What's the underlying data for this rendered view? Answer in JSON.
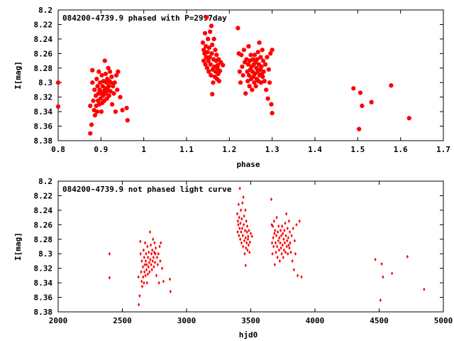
{
  "chart_data": [
    {
      "type": "scatter",
      "title": "084200-4739.9 phased with P=2997day",
      "xlabel": "phase",
      "ylabel": "I[mag]",
      "xlim": [
        0.8,
        1.7
      ],
      "ylim": [
        8.2,
        8.38
      ],
      "y_inverted": true,
      "grid": false,
      "marker_color": "#ff0000",
      "xticks": [
        "0.8",
        "0.9",
        "1",
        "1.1",
        "1.2",
        "1.3",
        "1.4",
        "1.5",
        "1.6",
        "1.7"
      ],
      "yticks": [
        "8.2",
        "8.22",
        "8.24",
        "8.26",
        "8.28",
        "8.3",
        "8.32",
        "8.34",
        "8.36",
        "8.38"
      ],
      "points": [
        [
          0.8,
          8.3
        ],
        [
          0.8,
          8.333
        ],
        [
          0.875,
          8.332
        ],
        [
          0.875,
          8.37
        ],
        [
          0.878,
          8.358
        ],
        [
          0.88,
          8.283
        ],
        [
          0.88,
          8.3
        ],
        [
          0.882,
          8.325
        ],
        [
          0.884,
          8.338
        ],
        [
          0.885,
          8.31
        ],
        [
          0.886,
          8.345
        ],
        [
          0.888,
          8.318
        ],
        [
          0.889,
          8.332
        ],
        [
          0.89,
          8.295
        ],
        [
          0.891,
          8.34
        ],
        [
          0.892,
          8.305
        ],
        [
          0.893,
          8.325
        ],
        [
          0.894,
          8.315
        ],
        [
          0.895,
          8.285
        ],
        [
          0.896,
          8.33
        ],
        [
          0.897,
          8.31
        ],
        [
          0.898,
          8.3
        ],
        [
          0.899,
          8.322
        ],
        [
          0.9,
          8.315
        ],
        [
          0.901,
          8.34
        ],
        [
          0.902,
          8.29
        ],
        [
          0.903,
          8.328
        ],
        [
          0.904,
          8.305
        ],
        [
          0.905,
          8.318
        ],
        [
          0.906,
          8.298
        ],
        [
          0.907,
          8.312
        ],
        [
          0.908,
          8.325
        ],
        [
          0.909,
          8.27
        ],
        [
          0.91,
          8.308
        ],
        [
          0.911,
          8.288
        ],
        [
          0.912,
          8.315
        ],
        [
          0.913,
          8.3
        ],
        [
          0.914,
          8.322
        ],
        [
          0.915,
          8.295
        ],
        [
          0.916,
          8.31
        ],
        [
          0.917,
          8.28
        ],
        [
          0.918,
          8.305
        ],
        [
          0.919,
          8.318
        ],
        [
          0.92,
          8.298
        ],
        [
          0.921,
          8.285
        ],
        [
          0.922,
          8.312
        ],
        [
          0.923,
          8.3
        ],
        [
          0.925,
          8.292
        ],
        [
          0.926,
          8.33
        ],
        [
          0.928,
          8.305
        ],
        [
          0.93,
          8.315
        ],
        [
          0.932,
          8.3
        ],
        [
          0.934,
          8.34
        ],
        [
          0.936,
          8.29
        ],
        [
          0.938,
          8.31
        ],
        [
          0.94,
          8.285
        ],
        [
          0.945,
          8.32
        ],
        [
          0.95,
          8.338
        ],
        [
          0.96,
          8.335
        ],
        [
          0.962,
          8.352
        ],
        [
          1.138,
          8.245
        ],
        [
          1.14,
          8.27
        ],
        [
          1.14,
          8.255
        ],
        [
          1.142,
          8.26
        ],
        [
          1.143,
          8.232
        ],
        [
          1.144,
          8.275
        ],
        [
          1.145,
          8.25
        ],
        [
          1.146,
          8.265
        ],
        [
          1.147,
          8.21
        ],
        [
          1.148,
          8.28
        ],
        [
          1.149,
          8.258
        ],
        [
          1.15,
          8.24
        ],
        [
          1.151,
          8.27
        ],
        [
          1.152,
          8.285
        ],
        [
          1.153,
          8.252
        ],
        [
          1.154,
          8.265
        ],
        [
          1.155,
          8.23
        ],
        [
          1.156,
          8.275
        ],
        [
          1.157,
          8.29
        ],
        [
          1.158,
          8.222
        ],
        [
          1.159,
          8.26
        ],
        [
          1.16,
          8.248
        ],
        [
          1.161,
          8.282
        ],
        [
          1.162,
          8.3
        ],
        [
          1.163,
          8.268
        ],
        [
          1.164,
          8.24
        ],
        [
          1.165,
          8.278
        ],
        [
          1.166,
          8.292
        ],
        [
          1.167,
          8.255
        ],
        [
          1.168,
          8.285
        ],
        [
          1.169,
          8.27
        ],
        [
          1.17,
          8.262
        ],
        [
          1.171,
          8.295
        ],
        [
          1.172,
          8.28
        ],
        [
          1.173,
          8.276
        ],
        [
          1.174,
          8.288
        ],
        [
          1.175,
          8.268
        ],
        [
          1.176,
          8.298
        ],
        [
          1.178,
          8.284
        ],
        [
          1.18,
          8.272
        ],
        [
          1.16,
          8.316
        ],
        [
          1.185,
          8.276
        ],
        [
          1.22,
          8.225
        ],
        [
          1.222,
          8.26
        ],
        [
          1.224,
          8.285
        ],
        [
          1.226,
          8.3
        ],
        [
          1.228,
          8.262
        ],
        [
          1.23,
          8.278
        ],
        [
          1.232,
          8.29
        ],
        [
          1.234,
          8.255
        ],
        [
          1.236,
          8.272
        ],
        [
          1.238,
          8.315
        ],
        [
          1.24,
          8.268
        ],
        [
          1.242,
          8.285
        ],
        [
          1.243,
          8.298
        ],
        [
          1.244,
          8.275
        ],
        [
          1.245,
          8.25
        ],
        [
          1.246,
          8.29
        ],
        [
          1.247,
          8.305
        ],
        [
          1.248,
          8.27
        ],
        [
          1.249,
          8.282
        ],
        [
          1.25,
          8.262
        ],
        [
          1.251,
          8.295
        ],
        [
          1.252,
          8.278
        ],
        [
          1.253,
          8.31
        ],
        [
          1.254,
          8.285
        ],
        [
          1.255,
          8.268
        ],
        [
          1.256,
          8.292
        ],
        [
          1.257,
          8.275
        ],
        [
          1.258,
          8.3
        ],
        [
          1.259,
          8.262
        ],
        [
          1.26,
          8.288
        ],
        [
          1.261,
          8.272
        ],
        [
          1.262,
          8.305
        ],
        [
          1.263,
          8.28
        ],
        [
          1.264,
          8.295
        ],
        [
          1.265,
          8.268
        ],
        [
          1.266,
          8.285
        ],
        [
          1.267,
          8.258
        ],
        [
          1.268,
          8.298
        ],
        [
          1.269,
          8.275
        ],
        [
          1.27,
          8.245
        ],
        [
          1.271,
          8.29
        ],
        [
          1.272,
          8.282
        ],
        [
          1.273,
          8.265
        ],
        [
          1.274,
          8.3
        ],
        [
          1.275,
          8.278
        ],
        [
          1.276,
          8.288
        ],
        [
          1.277,
          8.255
        ],
        [
          1.278,
          8.292
        ],
        [
          1.279,
          8.27
        ],
        [
          1.28,
          8.285
        ],
        [
          1.282,
          8.298
        ],
        [
          1.284,
          8.275
        ],
        [
          1.286,
          8.31
        ],
        [
          1.288,
          8.265
        ],
        [
          1.29,
          8.322
        ],
        [
          1.292,
          8.282
        ],
        [
          1.294,
          8.3
        ],
        [
          1.296,
          8.26
        ],
        [
          1.298,
          8.33
        ],
        [
          1.3,
          8.255
        ],
        [
          1.3,
          8.342
        ],
        [
          1.49,
          8.308
        ],
        [
          1.503,
          8.364
        ],
        [
          1.506,
          8.314
        ],
        [
          1.51,
          8.332
        ],
        [
          1.532,
          8.327
        ],
        [
          1.578,
          8.304
        ],
        [
          1.62,
          8.349
        ]
      ]
    },
    {
      "type": "scatter",
      "title": "084200-4739.9 not phased light curve",
      "xlabel": "hjd0",
      "ylabel": "I[mag]",
      "xlim": [
        2000,
        5000
      ],
      "ylim": [
        8.2,
        8.38
      ],
      "y_inverted": true,
      "grid": false,
      "marker_color": "#ff0000",
      "xticks": [
        "2000",
        "2500",
        "3000",
        "3500",
        "4000",
        "4500",
        "5000"
      ],
      "yticks": [
        "8.2",
        "8.22",
        "8.24",
        "8.26",
        "8.28",
        "8.3",
        "8.32",
        "8.34",
        "8.36",
        "8.38"
      ],
      "points": [
        [
          2400,
          8.3
        ],
        [
          2400,
          8.333
        ],
        [
          2625,
          8.332
        ],
        [
          2628,
          8.37
        ],
        [
          2635,
          8.358
        ],
        [
          2640,
          8.283
        ],
        [
          2642,
          8.3
        ],
        [
          2646,
          8.325
        ],
        [
          2650,
          8.338
        ],
        [
          2652,
          8.31
        ],
        [
          2655,
          8.345
        ],
        [
          2660,
          8.318
        ],
        [
          2662,
          8.332
        ],
        [
          2665,
          8.295
        ],
        [
          2668,
          8.34
        ],
        [
          2670,
          8.305
        ],
        [
          2672,
          8.325
        ],
        [
          2675,
          8.315
        ],
        [
          2677,
          8.285
        ],
        [
          2680,
          8.33
        ],
        [
          2682,
          8.31
        ],
        [
          2685,
          8.3
        ],
        [
          2688,
          8.322
        ],
        [
          2690,
          8.315
        ],
        [
          2692,
          8.34
        ],
        [
          2695,
          8.29
        ],
        [
          2698,
          8.328
        ],
        [
          2700,
          8.305
        ],
        [
          2703,
          8.318
        ],
        [
          2706,
          8.298
        ],
        [
          2709,
          8.312
        ],
        [
          2712,
          8.325
        ],
        [
          2715,
          8.27
        ],
        [
          2718,
          8.308
        ],
        [
          2721,
          8.288
        ],
        [
          2724,
          8.315
        ],
        [
          2727,
          8.3
        ],
        [
          2730,
          8.322
        ],
        [
          2733,
          8.295
        ],
        [
          2736,
          8.31
        ],
        [
          2739,
          8.28
        ],
        [
          2742,
          8.305
        ],
        [
          2745,
          8.318
        ],
        [
          2748,
          8.298
        ],
        [
          2751,
          8.285
        ],
        [
          2754,
          8.312
        ],
        [
          2757,
          8.3
        ],
        [
          2760,
          8.292
        ],
        [
          2765,
          8.33
        ],
        [
          2770,
          8.305
        ],
        [
          2775,
          8.315
        ],
        [
          2780,
          8.3
        ],
        [
          2785,
          8.34
        ],
        [
          2790,
          8.29
        ],
        [
          2795,
          8.31
        ],
        [
          2800,
          8.285
        ],
        [
          2810,
          8.32
        ],
        [
          2820,
          8.338
        ],
        [
          2870,
          8.335
        ],
        [
          2875,
          8.352
        ],
        [
          3395,
          8.245
        ],
        [
          3398,
          8.27
        ],
        [
          3400,
          8.255
        ],
        [
          3403,
          8.26
        ],
        [
          3405,
          8.232
        ],
        [
          3408,
          8.275
        ],
        [
          3410,
          8.25
        ],
        [
          3413,
          8.265
        ],
        [
          3415,
          8.21
        ],
        [
          3418,
          8.28
        ],
        [
          3420,
          8.258
        ],
        [
          3423,
          8.24
        ],
        [
          3425,
          8.27
        ],
        [
          3428,
          8.285
        ],
        [
          3430,
          8.252
        ],
        [
          3433,
          8.265
        ],
        [
          3435,
          8.23
        ],
        [
          3438,
          8.275
        ],
        [
          3440,
          8.29
        ],
        [
          3443,
          8.222
        ],
        [
          3445,
          8.26
        ],
        [
          3448,
          8.248
        ],
        [
          3450,
          8.282
        ],
        [
          3453,
          8.3
        ],
        [
          3455,
          8.268
        ],
        [
          3458,
          8.24
        ],
        [
          3460,
          8.278
        ],
        [
          3463,
          8.292
        ],
        [
          3465,
          8.255
        ],
        [
          3468,
          8.285
        ],
        [
          3470,
          8.27
        ],
        [
          3473,
          8.262
        ],
        [
          3475,
          8.295
        ],
        [
          3478,
          8.28
        ],
        [
          3480,
          8.276
        ],
        [
          3483,
          8.288
        ],
        [
          3486,
          8.268
        ],
        [
          3490,
          8.298
        ],
        [
          3494,
          8.284
        ],
        [
          3500,
          8.272
        ],
        [
          3460,
          8.316
        ],
        [
          3510,
          8.276
        ],
        [
          3660,
          8.225
        ],
        [
          3663,
          8.26
        ],
        [
          3666,
          8.285
        ],
        [
          3669,
          8.3
        ],
        [
          3672,
          8.262
        ],
        [
          3675,
          8.278
        ],
        [
          3678,
          8.29
        ],
        [
          3681,
          8.255
        ],
        [
          3684,
          8.272
        ],
        [
          3687,
          8.315
        ],
        [
          3690,
          8.268
        ],
        [
          3693,
          8.285
        ],
        [
          3696,
          8.298
        ],
        [
          3699,
          8.275
        ],
        [
          3702,
          8.25
        ],
        [
          3705,
          8.29
        ],
        [
          3708,
          8.305
        ],
        [
          3711,
          8.27
        ],
        [
          3714,
          8.282
        ],
        [
          3717,
          8.262
        ],
        [
          3720,
          8.295
        ],
        [
          3723,
          8.278
        ],
        [
          3726,
          8.31
        ],
        [
          3729,
          8.285
        ],
        [
          3732,
          8.268
        ],
        [
          3735,
          8.292
        ],
        [
          3738,
          8.275
        ],
        [
          3741,
          8.3
        ],
        [
          3744,
          8.262
        ],
        [
          3747,
          8.288
        ],
        [
          3750,
          8.272
        ],
        [
          3753,
          8.305
        ],
        [
          3756,
          8.28
        ],
        [
          3759,
          8.295
        ],
        [
          3762,
          8.268
        ],
        [
          3765,
          8.285
        ],
        [
          3768,
          8.258
        ],
        [
          3771,
          8.298
        ],
        [
          3774,
          8.275
        ],
        [
          3777,
          8.245
        ],
        [
          3780,
          8.29
        ],
        [
          3783,
          8.282
        ],
        [
          3786,
          8.265
        ],
        [
          3789,
          8.3
        ],
        [
          3792,
          8.278
        ],
        [
          3795,
          8.288
        ],
        [
          3798,
          8.255
        ],
        [
          3801,
          8.292
        ],
        [
          3804,
          8.27
        ],
        [
          3807,
          8.285
        ],
        [
          3812,
          8.298
        ],
        [
          3818,
          8.275
        ],
        [
          3824,
          8.31
        ],
        [
          3830,
          8.265
        ],
        [
          3836,
          8.322
        ],
        [
          3842,
          8.282
        ],
        [
          3848,
          8.3
        ],
        [
          3856,
          8.26
        ],
        [
          3865,
          8.33
        ],
        [
          3880,
          8.255
        ],
        [
          3895,
          8.332
        ],
        [
          4470,
          8.308
        ],
        [
          4510,
          8.364
        ],
        [
          4520,
          8.314
        ],
        [
          4530,
          8.332
        ],
        [
          4600,
          8.327
        ],
        [
          4720,
          8.304
        ],
        [
          4850,
          8.349
        ]
      ]
    }
  ]
}
